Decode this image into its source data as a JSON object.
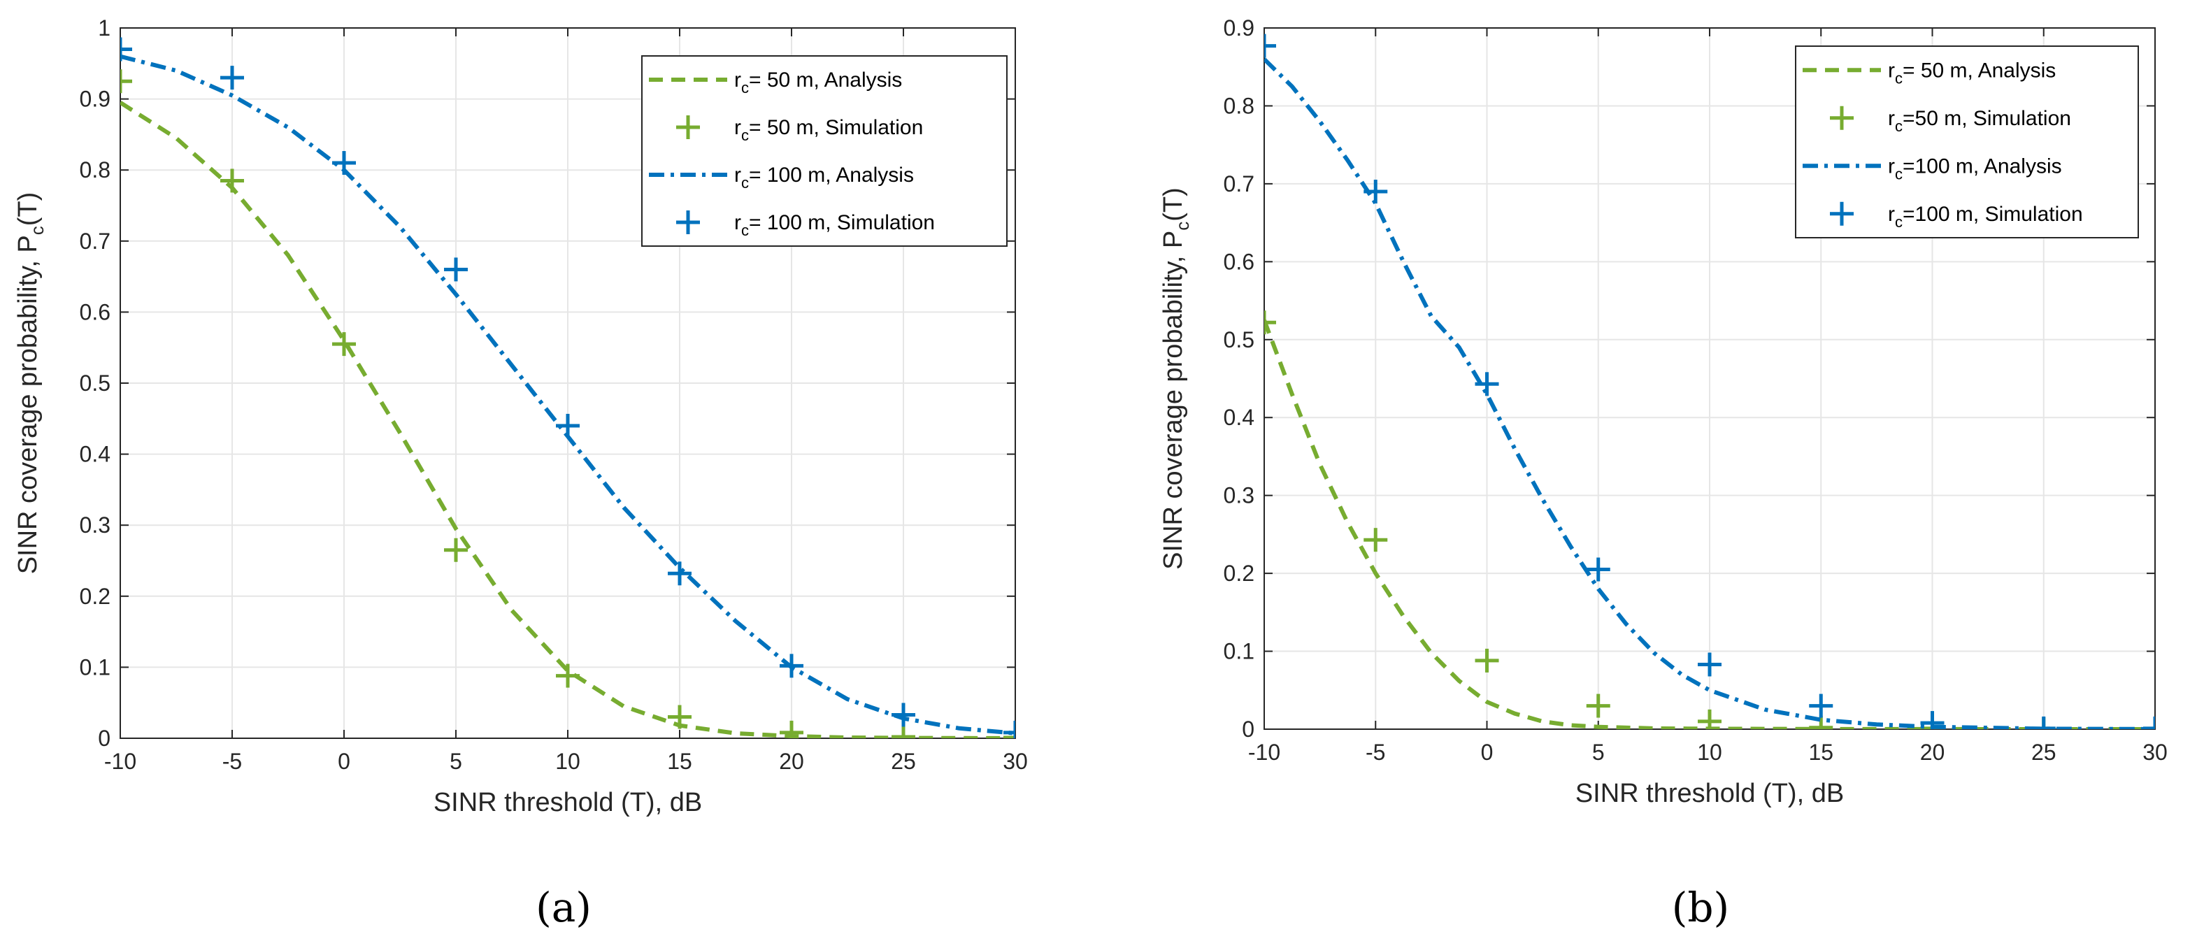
{
  "figure": {
    "captions": [
      "(a)",
      "(b)"
    ]
  },
  "colors": {
    "green": "#77AC30",
    "blue": "#0072BD",
    "grid": "#e6e6e6",
    "axis": "#262626"
  },
  "chart_data": [
    {
      "type": "line",
      "panel": "a",
      "xlabel": "SINR threshold (T), dB",
      "ylabel_main": "SINR coverage probability, P",
      "ylabel_sub": "c",
      "ylabel_tail": "(T)",
      "xlim": [
        -10,
        30
      ],
      "ylim": [
        0,
        1
      ],
      "xticks": [
        -10,
        -5,
        0,
        5,
        10,
        15,
        20,
        25,
        30
      ],
      "yticks": [
        0,
        0.1,
        0.2,
        0.3,
        0.4,
        0.5,
        0.6,
        0.7,
        0.8,
        0.9,
        1
      ],
      "xtick_labels": [
        "-10",
        "-5",
        "0",
        "5",
        "10",
        "15",
        "20",
        "25",
        "30"
      ],
      "ytick_labels": [
        "0",
        "0.1",
        "0.2",
        "0.3",
        "0.4",
        "0.5",
        "0.6",
        "0.7",
        "0.8",
        "0.9",
        "1"
      ],
      "grid": true,
      "legend_position": "top-right",
      "series": [
        {
          "name_pre": "r",
          "name_sub": "c",
          "name_post": "= 50 m, Analysis",
          "kind": "dashed",
          "color": "#77AC30",
          "x": [
            -10,
            -7.5,
            -5,
            -2.5,
            0,
            2.5,
            5,
            7.5,
            10,
            12.5,
            15,
            17.5,
            20,
            22.5,
            25,
            27.5,
            30
          ],
          "values": [
            0.895,
            0.845,
            0.775,
            0.68,
            0.56,
            0.43,
            0.295,
            0.18,
            0.095,
            0.045,
            0.018,
            0.007,
            0.003,
            0.001,
            0.0005,
            0.0002,
            0.0001
          ]
        },
        {
          "name_pre": "r",
          "name_sub": "c",
          "name_post": "= 50 m, Simulation",
          "kind": "plus",
          "color": "#77AC30",
          "x": [
            -10,
            -5,
            0,
            5,
            10,
            15,
            20,
            25,
            30
          ],
          "values": [
            0.925,
            0.785,
            0.555,
            0.265,
            0.088,
            0.03,
            0.008,
            0.002,
            0.001
          ]
        },
        {
          "name_pre": "r",
          "name_sub": "c",
          "name_post": "= 100 m, Analysis",
          "kind": "dashdot",
          "color": "#0072BD",
          "x": [
            -10,
            -7.5,
            -5,
            -2.5,
            0,
            2.5,
            5,
            7.5,
            10,
            12.5,
            15,
            17.5,
            20,
            22.5,
            25,
            27.5,
            30
          ],
          "values": [
            0.96,
            0.94,
            0.905,
            0.86,
            0.8,
            0.72,
            0.625,
            0.525,
            0.425,
            0.325,
            0.24,
            0.165,
            0.1,
            0.055,
            0.028,
            0.014,
            0.007
          ]
        },
        {
          "name_pre": "r",
          "name_sub": "c",
          "name_post": "= 100 m, Simulation",
          "kind": "plus",
          "color": "#0072BD",
          "x": [
            -10,
            -5,
            0,
            5,
            10,
            15,
            20,
            25,
            30
          ],
          "values": [
            0.97,
            0.93,
            0.81,
            0.66,
            0.44,
            0.232,
            0.102,
            0.033,
            0.008
          ]
        }
      ]
    },
    {
      "type": "line",
      "panel": "b",
      "xlabel": "SINR threshold (T), dB",
      "ylabel_main": "SINR coverage probability, P",
      "ylabel_sub": "c",
      "ylabel_tail": "(T)",
      "xlim": [
        -10,
        30
      ],
      "ylim": [
        0,
        0.9
      ],
      "xticks": [
        -10,
        -5,
        0,
        5,
        10,
        15,
        20,
        25,
        30
      ],
      "yticks": [
        0,
        0.1,
        0.2,
        0.3,
        0.4,
        0.5,
        0.6,
        0.7,
        0.8,
        0.9
      ],
      "xtick_labels": [
        "-10",
        "-5",
        "0",
        "5",
        "10",
        "15",
        "20",
        "25",
        "30"
      ],
      "ytick_labels": [
        "0",
        "0.1",
        "0.2",
        "0.3",
        "0.4",
        "0.5",
        "0.6",
        "0.7",
        "0.8",
        "0.9"
      ],
      "grid": true,
      "legend_position": "top-right",
      "series": [
        {
          "name_pre": "r",
          "name_sub": "c",
          "name_post": "= 50 m, Analysis",
          "kind": "dashed",
          "color": "#77AC30",
          "x": [
            -10,
            -8.75,
            -7.5,
            -6.25,
            -5,
            -3.75,
            -2.5,
            -1.25,
            0,
            1.25,
            2.5,
            3.75,
            5,
            7.5,
            10,
            15,
            20,
            25,
            30
          ],
          "values": [
            0.525,
            0.43,
            0.34,
            0.265,
            0.2,
            0.145,
            0.098,
            0.062,
            0.035,
            0.02,
            0.01,
            0.005,
            0.003,
            0.001,
            0.0005,
            0.0002,
            0.0001,
            0,
            0
          ]
        },
        {
          "name_pre": "r",
          "name_sub": "c",
          "name_post": "=50 m, Simulation",
          "kind": "plus",
          "color": "#77AC30",
          "x": [
            -10,
            -5,
            0,
            5,
            10,
            15,
            20,
            25,
            30
          ],
          "values": [
            0.522,
            0.243,
            0.088,
            0.03,
            0.01,
            0.002,
            0.001,
            0,
            0
          ]
        },
        {
          "name_pre": "r",
          "name_sub": "c",
          "name_post": "=100 m, Analysis",
          "kind": "dashdot",
          "color": "#0072BD",
          "x": [
            -10,
            -8.75,
            -7.5,
            -6.25,
            -5,
            -3.75,
            -2.5,
            -1.25,
            0,
            1.25,
            2.5,
            3.75,
            5,
            6.25,
            7.5,
            8.75,
            10,
            12.5,
            15,
            17.5,
            20,
            25,
            30
          ],
          "values": [
            0.86,
            0.825,
            0.78,
            0.73,
            0.675,
            0.6,
            0.53,
            0.49,
            0.43,
            0.36,
            0.295,
            0.235,
            0.18,
            0.135,
            0.098,
            0.07,
            0.05,
            0.025,
            0.012,
            0.006,
            0.003,
            0.0005,
            0.0001
          ]
        },
        {
          "name_pre": "r",
          "name_sub": "c",
          "name_post": "=100 m, Simulation",
          "kind": "plus",
          "color": "#0072BD",
          "x": [
            -10,
            -5,
            0,
            5,
            10,
            15,
            20,
            25,
            30
          ],
          "values": [
            0.877,
            0.69,
            0.443,
            0.205,
            0.083,
            0.03,
            0.008,
            0.001,
            0.001
          ]
        }
      ]
    }
  ]
}
